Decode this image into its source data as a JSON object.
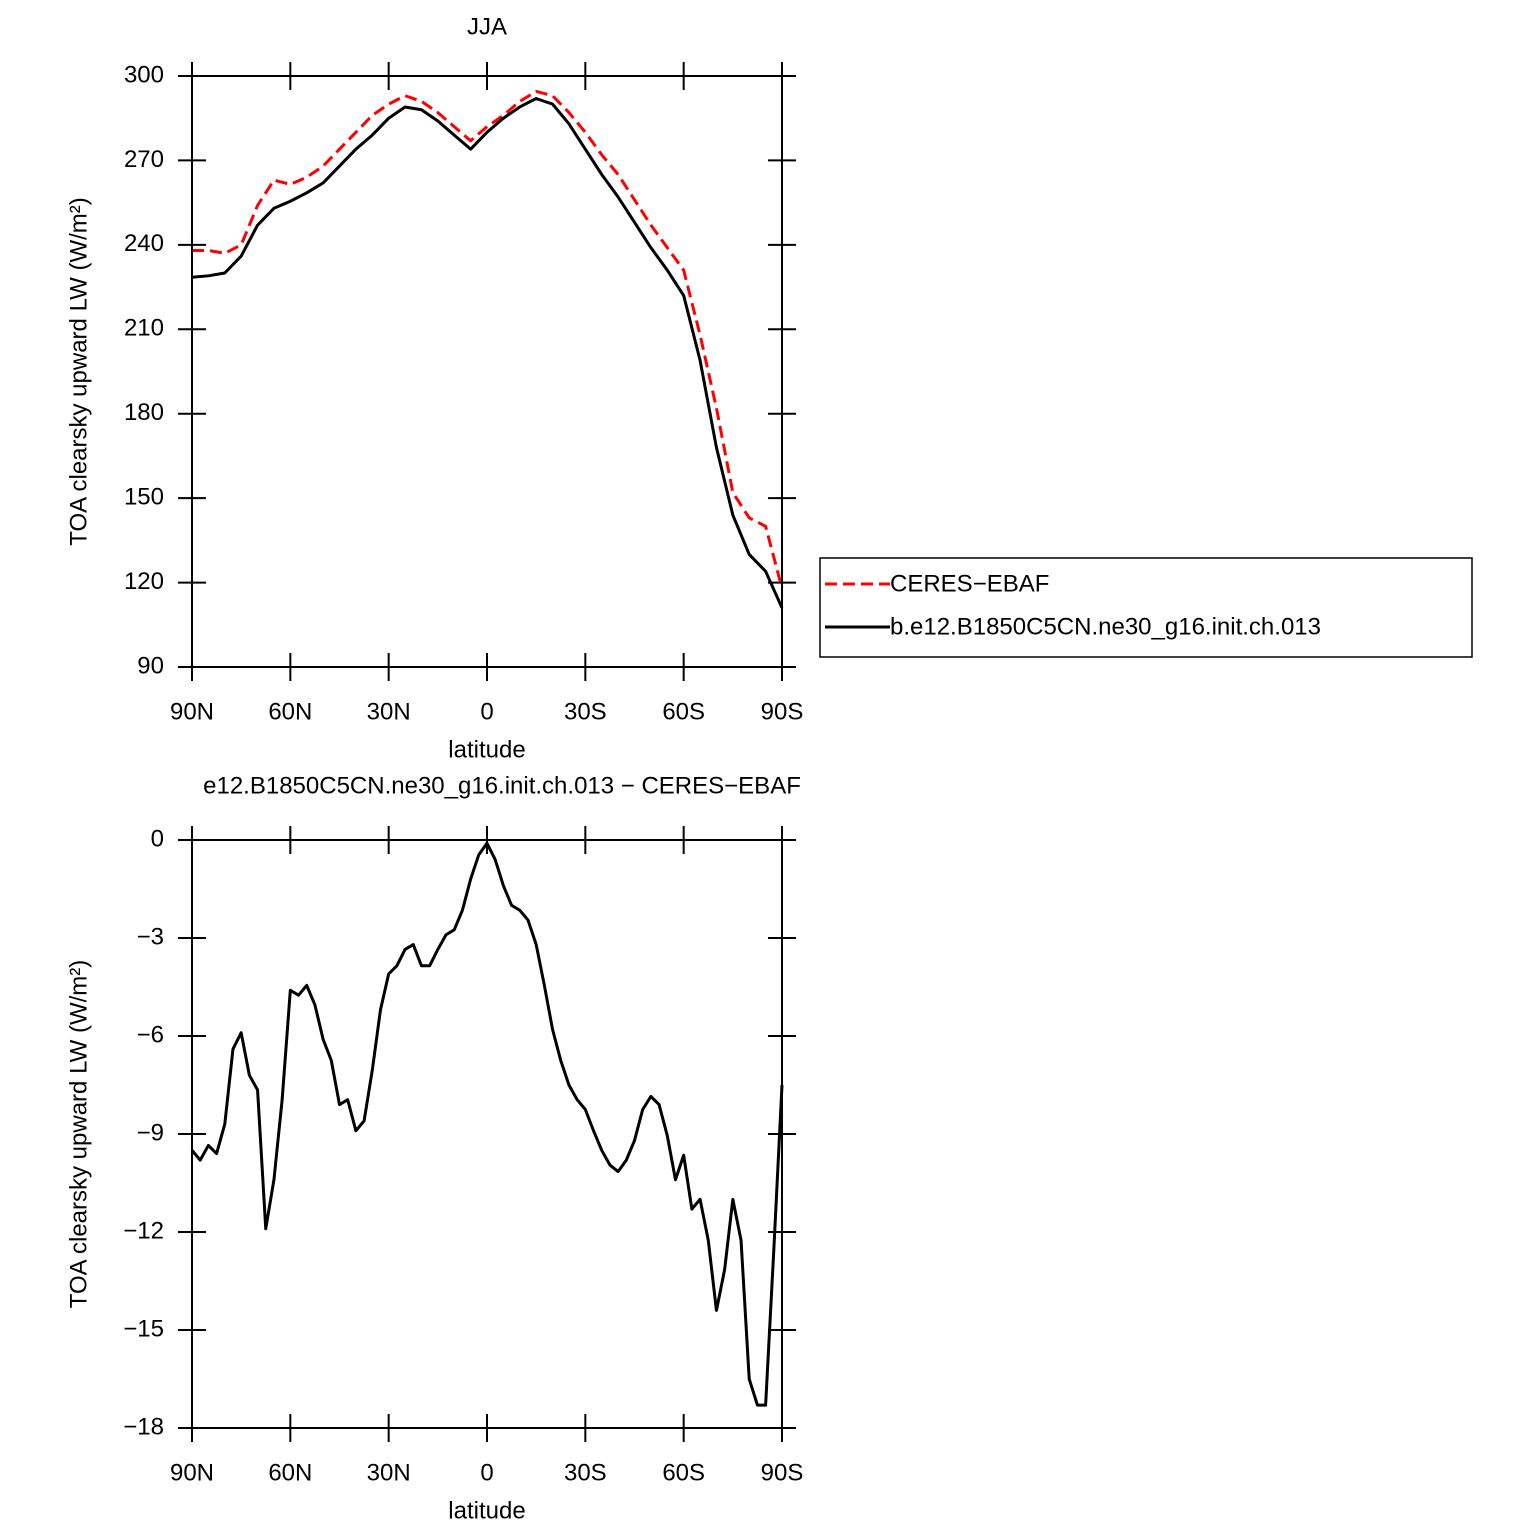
{
  "chart_data": [
    {
      "type": "line",
      "title": "JJA",
      "x_label": "latitude",
      "y_label": "TOA clearsky upward LW (W/m²)",
      "x": [
        90,
        85,
        80,
        75,
        70,
        65,
        60,
        55,
        50,
        45,
        40,
        35,
        30,
        25,
        20,
        15,
        10,
        5,
        0,
        -5,
        -10,
        -15,
        -20,
        -25,
        -30,
        -35,
        -40,
        -45,
        -50,
        -55,
        -60,
        -65,
        -70,
        -75,
        -80,
        -85,
        -90
      ],
      "series": [
        {
          "name": "CERES−EBAF",
          "color": "#ff0000",
          "dashed": true,
          "values": [
            238,
            238,
            237,
            240,
            254,
            263,
            261.5,
            264,
            268,
            274,
            280,
            286,
            290,
            293,
            291,
            287,
            282,
            277,
            282,
            286,
            291,
            294.5,
            293,
            287,
            280,
            272,
            265,
            256,
            247,
            239,
            231,
            208,
            182,
            152,
            143,
            140,
            118
          ]
        },
        {
          "name": "b.e12.B1850C5CN.ne30_g16.init.ch.013",
          "color": "#000000",
          "dashed": false,
          "values": [
            228.5,
            229,
            230,
            236,
            247,
            253,
            255.5,
            258.5,
            262,
            268,
            274,
            279,
            285,
            289,
            288,
            284,
            279,
            274,
            280,
            285,
            289,
            292,
            290,
            283,
            274,
            265,
            257,
            248,
            239,
            231,
            222,
            199,
            168,
            144,
            130,
            124,
            111
          ]
        }
      ],
      "xlim": [
        90,
        -90
      ],
      "xticks": [
        {
          "value": 90,
          "label": "90N"
        },
        {
          "value": 60,
          "label": "60N"
        },
        {
          "value": 30,
          "label": "30N"
        },
        0,
        {
          "value": -30,
          "label": "30S"
        },
        {
          "value": -60,
          "label": "60S"
        },
        {
          "value": -90,
          "label": "90S"
        }
      ],
      "ylim": [
        90,
        300
      ],
      "yticks": [
        90,
        120,
        150,
        180,
        210,
        240,
        270,
        300
      ]
    },
    {
      "type": "line",
      "title": "e12.B1850C5CN.ne30_g16.init.ch.013 − CERES−EBAF",
      "x_label": "latitude",
      "y_label": "TOA clearsky upward LW (W/m²)",
      "x": [
        90,
        87.5,
        85,
        82.5,
        80,
        77.5,
        75,
        72.5,
        70,
        67.5,
        65,
        62.5,
        60,
        57.5,
        55,
        52.5,
        50,
        47.5,
        45,
        42.5,
        40,
        37.5,
        35,
        32.5,
        30,
        27.5,
        25,
        22.5,
        20,
        17.5,
        15,
        12.5,
        10,
        7.5,
        5,
        2.5,
        0,
        -2.5,
        -5,
        -7.5,
        -10,
        -12.5,
        -15,
        -17.5,
        -20,
        -22.5,
        -25,
        -27.5,
        -30,
        -32.5,
        -35,
        -37.5,
        -40,
        -42.5,
        -45,
        -47.5,
        -50,
        -52.5,
        -55,
        -57.5,
        -60,
        -62.5,
        -65,
        -67.5,
        -70,
        -72.5,
        -75,
        -77.5,
        -80,
        -82.5,
        -85,
        -87.5,
        -90
      ],
      "color": "#000000",
      "values": [
        -9.5,
        -9.8,
        -9.35,
        -9.6,
        -8.7,
        -6.4,
        -5.9,
        -7.2,
        -7.65,
        -11.9,
        -10.4,
        -7.95,
        -4.6,
        -4.75,
        -4.45,
        -5.05,
        -6.1,
        -6.75,
        -8.1,
        -7.95,
        -8.9,
        -8.6,
        -7.05,
        -5.2,
        -4.1,
        -3.85,
        -3.35,
        -3.2,
        -3.85,
        -3.85,
        -3.35,
        -2.9,
        -2.75,
        -2.15,
        -1.2,
        -0.45,
        -0.1,
        -0.6,
        -1.4,
        -2.0,
        -2.15,
        -2.45,
        -3.2,
        -4.45,
        -5.8,
        -6.75,
        -7.5,
        -7.95,
        -8.25,
        -8.9,
        -9.5,
        -9.95,
        -10.15,
        -9.8,
        -9.2,
        -8.25,
        -7.85,
        -8.1,
        -9.05,
        -10.4,
        -9.65,
        -11.3,
        -11.0,
        -12.25,
        -14.4,
        -13.15,
        -11.0,
        -12.25,
        -16.5,
        -17.3,
        -17.3,
        -12.55,
        -7.5
      ],
      "xlim": [
        90,
        -90
      ],
      "xticks": [
        {
          "value": 90,
          "label": "90N"
        },
        {
          "value": 60,
          "label": "60N"
        },
        {
          "value": 30,
          "label": "30N"
        },
        0,
        {
          "value": -30,
          "label": "30S"
        },
        {
          "value": -60,
          "label": "60S"
        },
        {
          "value": -90,
          "label": "90S"
        }
      ],
      "ylim": [
        -18,
        0
      ],
      "yticks": [
        {
          "value": -18,
          "label": "−18"
        },
        {
          "value": -15,
          "label": "−15"
        },
        {
          "value": -12,
          "label": "−12"
        },
        {
          "value": -9,
          "label": "−9"
        },
        {
          "value": -6,
          "label": "−6"
        },
        {
          "value": -3,
          "label": "−3"
        },
        0
      ]
    }
  ]
}
